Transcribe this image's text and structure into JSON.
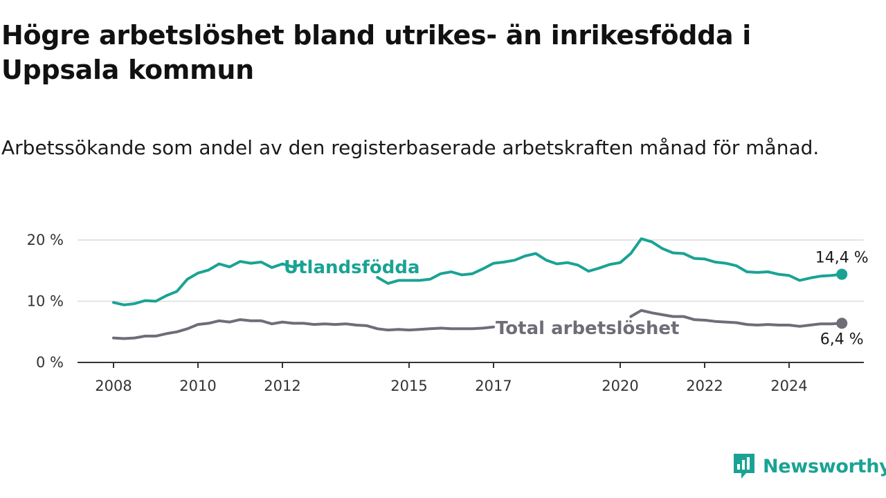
{
  "header": {
    "title": "Högre arbetslöshet bland utrikes- än inrikesfödda i Uppsala kommun",
    "subtitle": "Arbetssökande som andel av den registerbaserade arbetskraften månad för månad."
  },
  "branding": {
    "name": "Newsworthy",
    "icon": "newsworthy-logo-icon",
    "color": "#1aa394"
  },
  "chart_data": {
    "type": "line",
    "title": "Högre arbetslöshet bland utrikes- än inrikesfödda i Uppsala kommun",
    "subtitle": "Arbetssökande som andel av den registerbaserade arbetskraften månad för månad.",
    "xlabel": "",
    "ylabel": "",
    "x_ticks": [
      "2008",
      "2010",
      "2012",
      "2015",
      "2017",
      "2020",
      "2022",
      "2024"
    ],
    "y_ticks": [
      "0 %",
      "10 %",
      "20 %"
    ],
    "ylim": [
      0,
      20
    ],
    "xlim": [
      "2008-01",
      "2025-09"
    ],
    "grid": true,
    "legend": "inline labels on lines",
    "series": [
      {
        "name": "Utlandsfödda",
        "color": "#1aa394",
        "end_label": "14,4 %",
        "points": [
          [
            "2008-01",
            9.8
          ],
          [
            "2008-04",
            9.4
          ],
          [
            "2008-07",
            9.6
          ],
          [
            "2008-10",
            10.1
          ],
          [
            "2009-01",
            10.0
          ],
          [
            "2009-04",
            10.9
          ],
          [
            "2009-07",
            11.6
          ],
          [
            "2009-10",
            13.6
          ],
          [
            "2010-01",
            14.6
          ],
          [
            "2010-04",
            15.1
          ],
          [
            "2010-07",
            16.1
          ],
          [
            "2010-10",
            15.6
          ],
          [
            "2011-01",
            16.5
          ],
          [
            "2011-04",
            16.2
          ],
          [
            "2011-07",
            16.4
          ],
          [
            "2011-10",
            15.5
          ],
          [
            "2012-01",
            16.1
          ],
          [
            "2012-04",
            15.6
          ],
          [
            "2012-07",
            16.1
          ],
          [
            "2012-10",
            null
          ],
          [
            "2013-01",
            null
          ],
          [
            "2013-04",
            null
          ],
          [
            "2013-07",
            null
          ],
          [
            "2013-10",
            null
          ],
          [
            "2014-01",
            null
          ],
          [
            "2014-04",
            13.9
          ],
          [
            "2014-07",
            12.9
          ],
          [
            "2014-10",
            13.4
          ],
          [
            "2015-01",
            13.4
          ],
          [
            "2015-04",
            13.4
          ],
          [
            "2015-07",
            13.6
          ],
          [
            "2015-10",
            14.5
          ],
          [
            "2016-01",
            14.8
          ],
          [
            "2016-04",
            14.3
          ],
          [
            "2016-07",
            14.5
          ],
          [
            "2016-10",
            15.3
          ],
          [
            "2017-01",
            16.2
          ],
          [
            "2017-04",
            16.4
          ],
          [
            "2017-07",
            16.7
          ],
          [
            "2017-10",
            17.4
          ],
          [
            "2018-01",
            17.8
          ],
          [
            "2018-04",
            16.7
          ],
          [
            "2018-07",
            16.1
          ],
          [
            "2018-10",
            16.3
          ],
          [
            "2019-01",
            15.9
          ],
          [
            "2019-04",
            14.9
          ],
          [
            "2019-07",
            15.4
          ],
          [
            "2019-10",
            16.0
          ],
          [
            "2020-01",
            16.3
          ],
          [
            "2020-04",
            17.8
          ],
          [
            "2020-07",
            20.2
          ],
          [
            "2020-10",
            19.7
          ],
          [
            "2021-01",
            18.6
          ],
          [
            "2021-04",
            17.9
          ],
          [
            "2021-07",
            17.8
          ],
          [
            "2021-10",
            17.0
          ],
          [
            "2022-01",
            16.9
          ],
          [
            "2022-04",
            16.4
          ],
          [
            "2022-07",
            16.2
          ],
          [
            "2022-10",
            15.8
          ],
          [
            "2023-01",
            14.8
          ],
          [
            "2023-04",
            14.7
          ],
          [
            "2023-07",
            14.8
          ],
          [
            "2023-10",
            14.4
          ],
          [
            "2024-01",
            14.2
          ],
          [
            "2024-04",
            13.4
          ],
          [
            "2024-07",
            13.8
          ],
          [
            "2024-10",
            14.1
          ],
          [
            "2025-01",
            14.2
          ],
          [
            "2025-04",
            14.4
          ]
        ]
      },
      {
        "name": "Total arbetslöshet",
        "color": "#6e6d78",
        "end_label": "6,4 %",
        "points": [
          [
            "2008-01",
            4.0
          ],
          [
            "2008-04",
            3.9
          ],
          [
            "2008-07",
            4.0
          ],
          [
            "2008-10",
            4.3
          ],
          [
            "2009-01",
            4.3
          ],
          [
            "2009-04",
            4.7
          ],
          [
            "2009-07",
            5.0
          ],
          [
            "2009-10",
            5.5
          ],
          [
            "2010-01",
            6.2
          ],
          [
            "2010-04",
            6.4
          ],
          [
            "2010-07",
            6.8
          ],
          [
            "2010-10",
            6.6
          ],
          [
            "2011-01",
            7.0
          ],
          [
            "2011-04",
            6.8
          ],
          [
            "2011-07",
            6.8
          ],
          [
            "2011-10",
            6.3
          ],
          [
            "2012-01",
            6.6
          ],
          [
            "2012-04",
            6.4
          ],
          [
            "2012-07",
            6.4
          ],
          [
            "2012-10",
            6.2
          ],
          [
            "2013-01",
            6.3
          ],
          [
            "2013-04",
            6.2
          ],
          [
            "2013-07",
            6.3
          ],
          [
            "2013-10",
            6.1
          ],
          [
            "2014-01",
            6.0
          ],
          [
            "2014-04",
            5.5
          ],
          [
            "2014-07",
            5.3
          ],
          [
            "2014-10",
            5.4
          ],
          [
            "2015-01",
            5.3
          ],
          [
            "2015-04",
            5.4
          ],
          [
            "2015-07",
            5.5
          ],
          [
            "2015-10",
            5.6
          ],
          [
            "2016-01",
            5.5
          ],
          [
            "2016-04",
            5.5
          ],
          [
            "2016-07",
            5.5
          ],
          [
            "2016-10",
            5.6
          ],
          [
            "2017-01",
            5.8
          ],
          [
            "2017-04",
            null
          ],
          [
            "2017-07",
            null
          ],
          [
            "2017-10",
            null
          ],
          [
            "2018-01",
            null
          ],
          [
            "2018-04",
            null
          ],
          [
            "2018-07",
            null
          ],
          [
            "2018-10",
            null
          ],
          [
            "2019-01",
            null
          ],
          [
            "2019-04",
            null
          ],
          [
            "2019-07",
            null
          ],
          [
            "2019-10",
            null
          ],
          [
            "2020-01",
            null
          ],
          [
            "2020-04",
            7.5
          ],
          [
            "2020-07",
            8.5
          ],
          [
            "2020-10",
            8.1
          ],
          [
            "2021-01",
            7.8
          ],
          [
            "2021-04",
            7.5
          ],
          [
            "2021-07",
            7.5
          ],
          [
            "2021-10",
            7.0
          ],
          [
            "2022-01",
            6.9
          ],
          [
            "2022-04",
            6.7
          ],
          [
            "2022-07",
            6.6
          ],
          [
            "2022-10",
            6.5
          ],
          [
            "2023-01",
            6.2
          ],
          [
            "2023-04",
            6.1
          ],
          [
            "2023-07",
            6.2
          ],
          [
            "2023-10",
            6.1
          ],
          [
            "2024-01",
            6.1
          ],
          [
            "2024-04",
            5.9
          ],
          [
            "2024-07",
            6.1
          ],
          [
            "2024-10",
            6.3
          ],
          [
            "2025-01",
            6.3
          ],
          [
            "2025-04",
            6.4
          ]
        ]
      }
    ]
  }
}
